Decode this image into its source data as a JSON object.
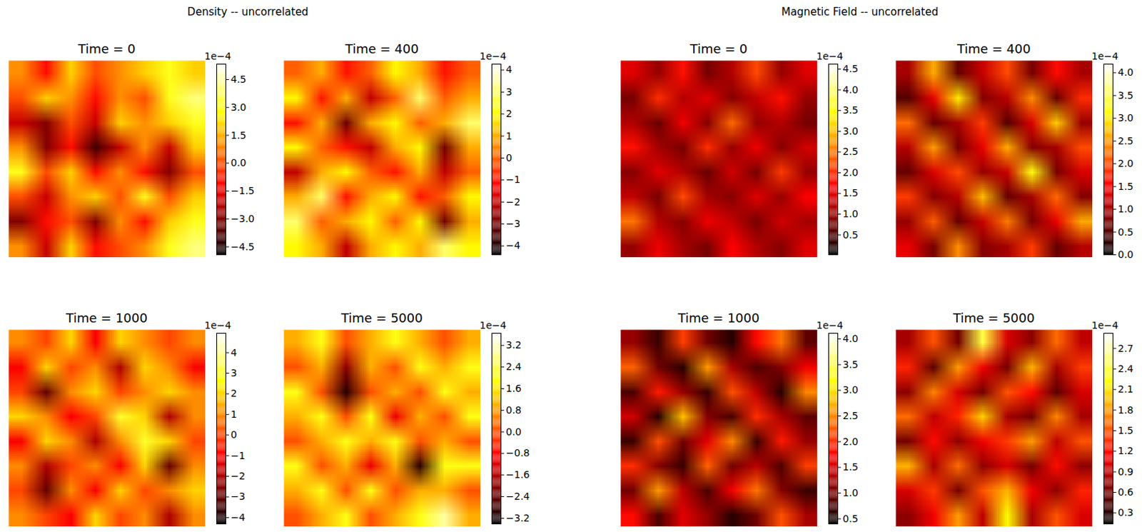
{
  "chart_data": [
    {
      "type": "heatmap",
      "title": "Density -- uncorrelated",
      "panels": [
        {
          "title": "Time = 0",
          "cells": [
            [
              1,
              -1,
              2,
              0,
              1,
              2,
              3,
              2
            ],
            [
              0,
              2,
              1,
              -1,
              1,
              0,
              3,
              4
            ],
            [
              -2,
              -3,
              0,
              -2,
              2,
              1,
              2,
              3
            ],
            [
              1,
              -3,
              -1,
              -4,
              -2,
              1,
              -2,
              2
            ],
            [
              3,
              0,
              2,
              -1,
              1,
              -1,
              -3,
              0
            ],
            [
              0,
              -2,
              1,
              2,
              0,
              3,
              0,
              2
            ],
            [
              -3,
              -1,
              0,
              -3,
              1,
              -1,
              2,
              3
            ],
            [
              1,
              -2,
              2,
              -1,
              0,
              1,
              3,
              4
            ]
          ],
          "colorbar": {
            "range": [
              -4.93,
              5.33
            ],
            "offset_label": "1e−4",
            "ticks": [
              {
                "value": -4.5,
                "label": "−4.5"
              },
              {
                "value": -3,
                "label": "−3.0"
              },
              {
                "value": -1.5,
                "label": "−1.5"
              },
              {
                "value": 0,
                "label": "0.0"
              },
              1.5,
              {
                "value": 3,
                "label": "3.0"
              },
              4.5
            ]
          }
        },
        {
          "title": "Time = 400",
          "cells": [
            [
              0,
              1,
              -1,
              0,
              2,
              1,
              -1,
              0
            ],
            [
              2,
              -1,
              1,
              -2,
              0,
              3,
              0,
              1
            ],
            [
              -1,
              1,
              -3,
              1,
              2,
              0,
              1,
              3
            ],
            [
              2,
              0,
              -1,
              -2,
              1,
              2,
              -3,
              1
            ],
            [
              -2,
              1,
              2,
              0,
              -1,
              1,
              -2,
              0
            ],
            [
              1,
              3,
              -1,
              1,
              2,
              -1,
              0,
              2
            ],
            [
              3,
              0,
              1,
              2,
              0,
              2,
              -3,
              1
            ],
            [
              2,
              1,
              -2,
              1,
              2,
              1,
              3,
              2
            ]
          ],
          "colorbar": {
            "range": [
              -4.4,
              4.27
            ],
            "offset_label": "1e−4",
            "ticks": [
              {
                "value": -4,
                "label": "−4"
              },
              {
                "value": -3,
                "label": "−3"
              },
              {
                "value": -2,
                "label": "−2"
              },
              {
                "value": -1,
                "label": "−1"
              },
              0,
              1,
              2,
              3,
              4
            ]
          }
        },
        {
          "title": "Time = 1000",
          "cells": [
            [
              1,
              0,
              2,
              -1,
              2,
              1,
              0,
              1
            ],
            [
              -1,
              2,
              0,
              1,
              -2,
              2,
              1,
              -1
            ],
            [
              0,
              -3,
              1,
              2,
              0,
              1,
              2,
              1
            ],
            [
              2,
              1,
              -1,
              0,
              3,
              2,
              -2,
              1
            ],
            [
              -1,
              2,
              1,
              -2,
              1,
              3,
              2,
              0
            ],
            [
              1,
              -2,
              0,
              1,
              -1,
              2,
              -3,
              1
            ],
            [
              0,
              -3,
              1,
              -1,
              2,
              0,
              1,
              2
            ],
            [
              1,
              0,
              -1,
              2,
              0,
              1,
              -2,
              1
            ]
          ],
          "colorbar": {
            "range": [
              -4.31,
              4.94
            ],
            "offset_label": "1e−4",
            "ticks": [
              {
                "value": -4,
                "label": "−4"
              },
              {
                "value": -3,
                "label": "−3"
              },
              {
                "value": -2,
                "label": "−2"
              },
              {
                "value": -1,
                "label": "−1"
              },
              0,
              1,
              2,
              3,
              4
            ]
          }
        },
        {
          "title": "Time = 5000",
          "cells": [
            [
              1,
              2,
              0,
              1,
              2,
              1,
              0,
              1
            ],
            [
              0,
              1,
              -2,
              1,
              0,
              2,
              1,
              2
            ],
            [
              2,
              0,
              -3,
              0,
              1,
              0,
              2,
              1
            ],
            [
              1,
              2,
              0,
              2,
              -1,
              1,
              0,
              2
            ],
            [
              0,
              1,
              2,
              1,
              2,
              0,
              1,
              0
            ],
            [
              2,
              0,
              1,
              -1,
              1,
              -3,
              2,
              2
            ],
            [
              1,
              2,
              0,
              2,
              0,
              1,
              1,
              0
            ],
            [
              0,
              1,
              2,
              0,
              1,
              2,
              3,
              1
            ]
          ],
          "colorbar": {
            "range": [
              -3.41,
              3.65
            ],
            "offset_label": "1e−4",
            "ticks": [
              {
                "value": -3.2,
                "label": "−3.2"
              },
              {
                "value": -2.4,
                "label": "−2.4"
              },
              {
                "value": -1.6,
                "label": "−1.6"
              },
              {
                "value": -0.8,
                "label": "−0.8"
              },
              {
                "value": 0,
                "label": "0.0"
              },
              0.8,
              1.6,
              2.4,
              3.2
            ]
          }
        }
      ]
    },
    {
      "type": "heatmap",
      "title": "Magnetic Field -- uncorrelated",
      "panels": [
        {
          "title": "Time = 0",
          "cells": [
            [
              1.5,
              1.0,
              1.8,
              0.8,
              1.2,
              2.2,
              1.0,
              1.5
            ],
            [
              0.8,
              2.0,
              1.2,
              1.5,
              0.9,
              1.3,
              1.8,
              1.0
            ],
            [
              1.2,
              0.7,
              1.6,
              0.9,
              2.4,
              1.0,
              1.2,
              0.8
            ],
            [
              1.8,
              1.1,
              0.8,
              2.0,
              1.0,
              1.6,
              0.9,
              1.4
            ],
            [
              0.9,
              1.5,
              1.2,
              0.7,
              1.4,
              0.8,
              2.1,
              1.0
            ],
            [
              1.3,
              0.8,
              2.2,
              1.1,
              0.9,
              1.5,
              1.0,
              1.7
            ],
            [
              2.5,
              1.2,
              0.9,
              1.6,
              1.3,
              0.8,
              1.4,
              1.1
            ],
            [
              1.0,
              1.6,
              1.1,
              0.8,
              1.7,
              1.2,
              0.9,
              1.5
            ]
          ],
          "colorbar": {
            "range": [
              0.02,
              4.62
            ],
            "offset_label": "1e−4",
            "ticks": [
              0.5,
              {
                "value": 1,
                "label": "1.0"
              },
              1.5,
              {
                "value": 2,
                "label": "2.0"
              },
              2.5,
              {
                "value": 3,
                "label": "3.0"
              },
              3.5,
              {
                "value": 4,
                "label": "4.0"
              },
              4.5
            ]
          }
        },
        {
          "title": "Time = 400",
          "cells": [
            [
              1.0,
              2.6,
              0.6,
              1.2,
              2.0,
              0.7,
              1.6,
              1.0
            ],
            [
              0.5,
              1.4,
              3.0,
              0.8,
              1.1,
              2.4,
              0.6,
              1.8
            ],
            [
              2.2,
              0.6,
              1.0,
              1.9,
              0.5,
              1.3,
              2.8,
              0.9
            ],
            [
              1.1,
              2.5,
              0.7,
              1.4,
              2.6,
              0.8,
              1.0,
              2.0
            ],
            [
              0.6,
              1.3,
              2.0,
              0.9,
              1.2,
              3.2,
              0.7,
              1.3
            ],
            [
              1.9,
              0.8,
              1.1,
              2.7,
              0.6,
              1.0,
              2.2,
              0.8
            ],
            [
              0.9,
              2.1,
              0.6,
              1.2,
              2.3,
              0.7,
              1.4,
              2.6
            ],
            [
              1.4,
              0.7,
              2.4,
              0.8,
              1.0,
              1.9,
              0.6,
              1.1
            ]
          ],
          "colorbar": {
            "range": [
              0,
              4.19
            ],
            "offset_label": "1e−4",
            "ticks": [
              {
                "value": 0,
                "label": "0.0"
              },
              0.5,
              {
                "value": 1,
                "label": "1.0"
              },
              1.5,
              {
                "value": 2,
                "label": "2.0"
              },
              2.5,
              {
                "value": 3,
                "label": "3.0"
              },
              3.5,
              {
                "value": 4,
                "label": "4.0"
              }
            ]
          }
        },
        {
          "title": "Time = 1000",
          "cells": [
            [
              1.2,
              0.7,
              2.1,
              1.0,
              0.6,
              1.8,
              2.4,
              0.9
            ],
            [
              2.3,
              1.0,
              0.6,
              2.6,
              1.3,
              0.8,
              1.1,
              1.7
            ],
            [
              0.8,
              1.9,
              1.2,
              0.7,
              2.2,
              1.4,
              0.6,
              2.5
            ],
            [
              1.5,
              0.6,
              2.8,
              1.1,
              0.8,
              2.0,
              1.3,
              0.9
            ],
            [
              0.7,
              2.2,
              1.0,
              1.6,
              2.5,
              0.7,
              1.9,
              1.2
            ],
            [
              2.0,
              1.1,
              0.7,
              2.3,
              1.0,
              1.4,
              0.8,
              2.1
            ],
            [
              1.0,
              2.6,
              1.4,
              0.8,
              1.7,
              2.4,
              1.1,
              0.7
            ],
            [
              1.8,
              0.8,
              1.6,
              1.2,
              0.6,
              1.0,
              2.2,
              1.3
            ]
          ],
          "colorbar": {
            "range": [
              0.4,
              4.11
            ],
            "offset_label": "1e−4",
            "ticks": [
              0.5,
              {
                "value": 1,
                "label": "1.0"
              },
              1.5,
              {
                "value": 2,
                "label": "2.0"
              },
              2.5,
              {
                "value": 3,
                "label": "3.0"
              },
              3.5,
              {
                "value": 4,
                "label": "4.0"
              }
            ]
          }
        },
        {
          "title": "Time = 5000",
          "cells": [
            [
              0.8,
              1.5,
              0.6,
              2.4,
              1.0,
              0.7,
              1.6,
              0.9
            ],
            [
              1.3,
              0.5,
              1.8,
              1.1,
              0.6,
              1.9,
              0.8,
              1.4
            ],
            [
              0.7,
              1.7,
              1.0,
              0.6,
              1.5,
              1.2,
              0.5,
              1.0
            ],
            [
              1.6,
              0.9,
              1.3,
              2.0,
              0.8,
              0.6,
              1.7,
              0.8
            ],
            [
              0.6,
              1.2,
              0.7,
              1.1,
              1.4,
              1.8,
              0.9,
              1.5
            ],
            [
              1.9,
              0.8,
              1.6,
              0.7,
              1.0,
              0.6,
              1.2,
              0.7
            ],
            [
              1.0,
              1.4,
              0.6,
              1.5,
              1.9,
              1.1,
              0.7,
              1.3
            ],
            [
              0.7,
              1.1,
              1.8,
              0.9,
              2.2,
              0.8,
              1.5,
              1.0
            ]
          ],
          "colorbar": {
            "range": [
              0.14,
              2.92
            ],
            "offset_label": "1e−4",
            "ticks": [
              0.3,
              0.6,
              0.9,
              1.2,
              1.5,
              1.8,
              2.1,
              2.4,
              2.7
            ]
          }
        }
      ]
    }
  ]
}
